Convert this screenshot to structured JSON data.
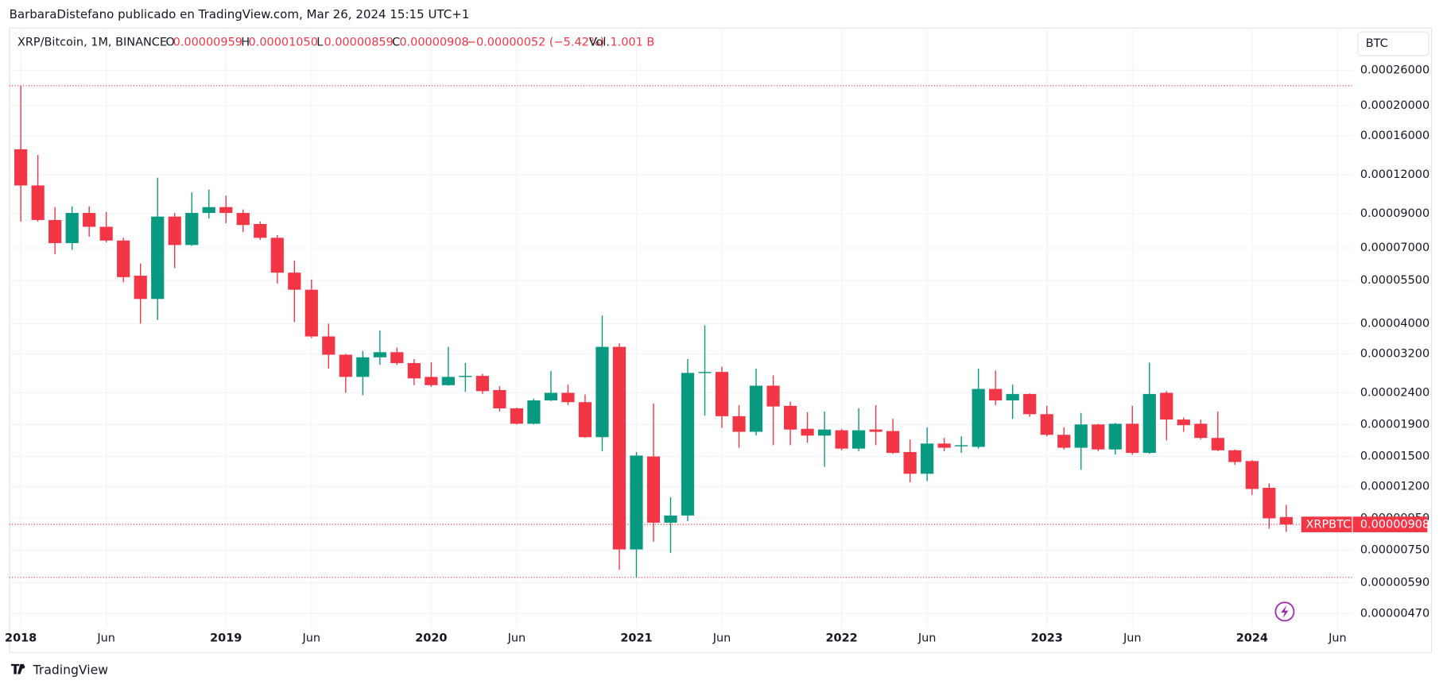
{
  "attribution": "BarbaraDistefano publicado en TradingView.com, Mar 26, 2024 15:15 UTC+1",
  "brand": "TradingView",
  "currency": "BTC",
  "header": {
    "symbol": "XRP/Bitcoin, 1M, BINANCE",
    "items": [
      {
        "key": "O",
        "value": "0.00000959"
      },
      {
        "key": "H",
        "value": "0.00001050"
      },
      {
        "key": "L",
        "value": "0.00000859"
      },
      {
        "key": "C",
        "value": "0.00000908"
      }
    ],
    "change": "−0.00000052 (−5.42%)",
    "volume_key": "Vol.",
    "volume": "1.001 B"
  },
  "chart_data": {
    "type": "candlestick",
    "log_scale": true,
    "grid": true,
    "up_color": "#089981",
    "down_color": "#f23645",
    "price_label": "XRPBTC",
    "x": [
      "2018-01",
      "2018-02",
      "2018-03",
      "2018-04",
      "2018-05",
      "2018-06",
      "2018-07",
      "2018-08",
      "2018-09",
      "2018-10",
      "2018-11",
      "2018-12",
      "2019-01",
      "2019-02",
      "2019-03",
      "2019-04",
      "2019-05",
      "2019-06",
      "2019-07",
      "2019-08",
      "2019-09",
      "2019-10",
      "2019-11",
      "2019-12",
      "2020-01",
      "2020-02",
      "2020-03",
      "2020-04",
      "2020-05",
      "2020-06",
      "2020-07",
      "2020-08",
      "2020-09",
      "2020-10",
      "2020-11",
      "2020-12",
      "2021-01",
      "2021-02",
      "2021-03",
      "2021-04",
      "2021-05",
      "2021-06",
      "2021-07",
      "2021-08",
      "2021-09",
      "2021-10",
      "2021-11",
      "2021-12",
      "2022-01",
      "2022-02",
      "2022-03",
      "2022-04",
      "2022-05",
      "2022-06",
      "2022-07",
      "2022-08",
      "2022-09",
      "2022-10",
      "2022-11",
      "2022-12",
      "2023-01",
      "2023-02",
      "2023-03",
      "2023-04",
      "2023-05",
      "2023-06",
      "2023-07",
      "2023-08",
      "2023-09",
      "2023-10",
      "2023-11",
      "2023-12",
      "2024-01",
      "2024-02",
      "2024-03"
    ],
    "open": [
      0.000145,
      0.000111,
      8.6e-05,
      7.25e-05,
      9.06e-05,
      8.18e-05,
      7.39e-05,
      5.7e-05,
      4.8e-05,
      8.82e-05,
      7.15e-05,
      9.06e-05,
      9.46e-05,
      9.06e-05,
      8.35e-05,
      7.54e-05,
      5.83e-05,
      5.14e-05,
      3.64e-05,
      3.18e-05,
      2.7e-05,
      3.12e-05,
      3.24e-05,
      2.99e-05,
      2.7e-05,
      2.54e-05,
      2.7e-05,
      2.72e-05,
      2.45e-05,
      2.14e-05,
      1.91e-05,
      2.27e-05,
      2.4e-05,
      2.24e-05,
      1.73e-05,
      3.37e-05,
      7.55e-06,
      1.5e-05,
      9.2e-06,
      9.7e-06,
      2.78e-05,
      2.8e-05,
      2.02e-05,
      1.8e-05,
      2.53e-05,
      2.18e-05,
      1.84e-05,
      1.75e-05,
      1.82e-05,
      1.59e-05,
      1.83e-05,
      1.81e-05,
      1.55e-05,
      1.32e-05,
      1.65e-05,
      1.62e-05,
      1.61e-05,
      2.47e-05,
      2.27e-05,
      2.38e-05,
      2.05e-05,
      1.76e-05,
      1.6e-05,
      1.9e-05,
      1.58e-05,
      1.91e-05,
      1.54e-05,
      2.4e-05,
      1.97e-05,
      1.91e-05,
      1.72e-05,
      1.57e-05,
      1.45e-05,
      1.19e-05,
      9.59e-06
    ],
    "high": [
      0.000232,
      0.000139,
      9.46e-05,
      9.52e-05,
      9.52e-05,
      9.12e-05,
      7.54e-05,
      6.24e-05,
      0.0001176,
      9.06e-05,
      0.0001055,
      0.0001077,
      0.000103,
      9.3e-05,
      8.5e-05,
      7.69e-05,
      6.37e-05,
      5.54e-05,
      4e-05,
      3.2e-05,
      3.27e-05,
      3.8e-05,
      3.35e-05,
      3.08e-05,
      3.01e-05,
      3.37e-05,
      2.99e-05,
      2.76e-05,
      2.52e-05,
      2.15e-05,
      2.3e-05,
      2.82e-05,
      2.55e-05,
      2.37e-05,
      4.25e-05,
      3.46e-05,
      1.55e-05,
      2.22e-05,
      1.11e-05,
      3.08e-05,
      3.95e-05,
      2.91e-05,
      2.19e-05,
      2.87e-05,
      2.73e-05,
      2.25e-05,
      2.08e-05,
      2.09e-05,
      1.84e-05,
      2.14e-05,
      2.19e-05,
      1.98e-05,
      1.7e-05,
      1.86e-05,
      1.72e-05,
      1.74e-05,
      2.87e-05,
      2.83e-05,
      2.55e-05,
      2.39e-05,
      2.18e-05,
      1.86e-05,
      2.07e-05,
      1.91e-05,
      1.92e-05,
      2.18e-05,
      3e-05,
      2.43e-05,
      2e-05,
      1.97e-05,
      2.09e-05,
      1.58e-05,
      1.46e-05,
      1.23e-05,
      1.05e-05
    ],
    "low": [
      8.5e-05,
      8.5e-05,
      6.68e-05,
      6.9e-05,
      7.6e-05,
      7.3e-05,
      5.43e-05,
      4e-05,
      4.11e-05,
      6.03e-05,
      7.1e-05,
      8.7e-05,
      8.4e-05,
      7.86e-05,
      7.43e-05,
      5.38e-05,
      4.05e-05,
      3.6e-05,
      2.87e-05,
      2.4e-05,
      2.36e-05,
      2.95e-05,
      2.95e-05,
      2.54e-05,
      2.51e-05,
      2.53e-05,
      2.42e-05,
      2.38e-05,
      2.09e-05,
      1.9e-05,
      1.9e-05,
      2.26e-05,
      2.19e-05,
      1.72e-05,
      1.56e-05,
      6.5e-06,
      6.14e-06,
      8e-06,
      7.35e-06,
      9.3e-06,
      2.03e-05,
      1.85e-05,
      1.6e-05,
      1.75e-05,
      1.63e-05,
      1.63e-05,
      1.66e-05,
      1.39e-05,
      1.57e-05,
      1.56e-05,
      1.63e-05,
      1.53e-05,
      1.24e-05,
      1.25e-05,
      1.56e-05,
      1.54e-05,
      1.59e-05,
      2.19e-05,
      1.98e-05,
      2.01e-05,
      1.74e-05,
      1.58e-05,
      1.36e-05,
      1.56e-05,
      1.52e-05,
      1.52e-05,
      1.53e-05,
      1.69e-05,
      1.8e-05,
      1.7e-05,
      1.56e-05,
      1.41e-05,
      1.13e-05,
      8.8e-06,
      8.59e-06
    ],
    "close": [
      0.000111,
      8.6e-05,
      7.25e-05,
      9.06e-05,
      8.18e-05,
      7.39e-05,
      5.64e-05,
      4.8e-05,
      8.82e-05,
      7.15e-05,
      9.06e-05,
      9.46e-05,
      9.06e-05,
      8.29e-05,
      7.54e-05,
      5.83e-05,
      5.14e-05,
      3.64e-05,
      3.18e-05,
      2.7e-05,
      3.12e-05,
      3.24e-05,
      2.99e-05,
      2.67e-05,
      2.54e-05,
      2.7e-05,
      2.72e-05,
      2.43e-05,
      2.14e-05,
      1.91e-05,
      2.27e-05,
      2.4e-05,
      2.24e-05,
      1.73e-05,
      3.37e-05,
      7.55e-06,
      1.51e-05,
      9.2e-06,
      9.7e-06,
      2.78e-05,
      2.8e-05,
      2.02e-05,
      1.8e-05,
      2.53e-05,
      2.17e-05,
      1.83e-05,
      1.75e-05,
      1.83e-05,
      1.59e-05,
      1.82e-05,
      1.8e-05,
      1.54e-05,
      1.32e-05,
      1.65e-05,
      1.6e-05,
      1.63e-05,
      2.47e-05,
      2.27e-05,
      2.38e-05,
      2.05e-05,
      1.76e-05,
      1.6e-05,
      1.9e-05,
      1.58e-05,
      1.91e-05,
      1.54e-05,
      2.38e-05,
      1.97e-05,
      1.89e-05,
      1.72e-05,
      1.57e-05,
      1.44e-05,
      1.18e-05,
      9.5e-06,
      9.08e-06
    ],
    "xlim": [
      "2017-12",
      "2024-07"
    ],
    "xticks": [
      {
        "value": "2018-01",
        "label": "2018"
      },
      {
        "value": "2018-06",
        "label": "Jun"
      },
      {
        "value": "2019-01",
        "label": "2019"
      },
      {
        "value": "2019-06",
        "label": "Jun"
      },
      {
        "value": "2020-01",
        "label": "2020"
      },
      {
        "value": "2020-06",
        "label": "Jun"
      },
      {
        "value": "2021-01",
        "label": "2021"
      },
      {
        "value": "2021-06",
        "label": "Jun"
      },
      {
        "value": "2022-01",
        "label": "2022"
      },
      {
        "value": "2022-06",
        "label": "Jun"
      },
      {
        "value": "2023-01",
        "label": "2023"
      },
      {
        "value": "2023-06",
        "label": "Jun"
      },
      {
        "value": "2024-01",
        "label": "2024"
      },
      {
        "value": "2024-06",
        "label": "Jun"
      }
    ],
    "ylim": [
      4.25e-06,
      0.000356
    ],
    "yticks": [
      {
        "value": 0.00026,
        "label": "0.00026000"
      },
      {
        "value": 0.0002,
        "label": "0.00020000"
      },
      {
        "value": 0.00016,
        "label": "0.00016000"
      },
      {
        "value": 0.00012,
        "label": "0.00012000"
      },
      {
        "value": 9e-05,
        "label": "0.00009000"
      },
      {
        "value": 7e-05,
        "label": "0.00007000"
      },
      {
        "value": 5.5e-05,
        "label": "0.00005500"
      },
      {
        "value": 4e-05,
        "label": "0.00004000"
      },
      {
        "value": 3.2e-05,
        "label": "0.00003200"
      },
      {
        "value": 2.4e-05,
        "label": "0.00002400"
      },
      {
        "value": 1.9e-05,
        "label": "0.00001900"
      },
      {
        "value": 1.5e-05,
        "label": "0.00001500"
      },
      {
        "value": 1.2e-05,
        "label": "0.00001200"
      },
      {
        "value": 9.5e-06,
        "label": "0.00000950"
      },
      {
        "value": 7.5e-06,
        "label": "0.00000750"
      },
      {
        "value": 5.9e-06,
        "label": "0.00000590"
      },
      {
        "value": 4.7e-06,
        "label": "0.00000470"
      }
    ]
  }
}
